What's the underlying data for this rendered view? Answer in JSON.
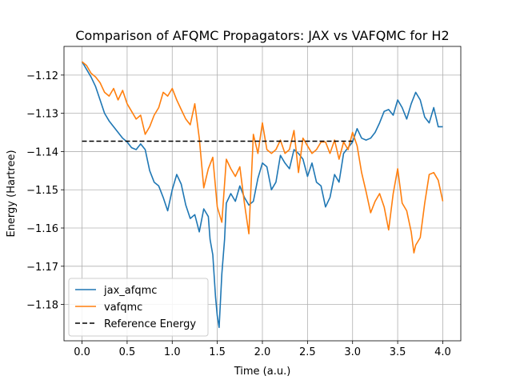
{
  "chart_data": {
    "type": "line",
    "title": "Comparison of AFQMC Propagators: JAX vs VAFQMC for H2",
    "xlabel": "Time (a.u.)",
    "ylabel": "Energy (Hartree)",
    "xlim": [
      -0.2,
      4.2
    ],
    "ylim": [
      -1.1895,
      -1.1125
    ],
    "xticks": [
      0.0,
      0.5,
      1.0,
      1.5,
      2.0,
      2.5,
      3.0,
      3.5,
      4.0
    ],
    "xtick_labels": [
      "0.0",
      "0.5",
      "1.0",
      "1.5",
      "2.0",
      "2.5",
      "3.0",
      "3.5",
      "4.0"
    ],
    "yticks": [
      -1.18,
      -1.17,
      -1.16,
      -1.15,
      -1.14,
      -1.13,
      -1.12
    ],
    "ytick_labels": [
      "−1.18",
      "−1.17",
      "−1.16",
      "−1.15",
      "−1.14",
      "−1.13",
      "−1.12"
    ],
    "grid": true,
    "legend_position": "lower-left",
    "series": [
      {
        "name": "jax_afqmc",
        "color": "#1f77b4",
        "style": "solid",
        "x": [
          0.0,
          0.05,
          0.1,
          0.15,
          0.2,
          0.25,
          0.3,
          0.35,
          0.4,
          0.45,
          0.5,
          0.55,
          0.6,
          0.65,
          0.7,
          0.75,
          0.8,
          0.85,
          0.9,
          0.95,
          1.0,
          1.05,
          1.1,
          1.15,
          1.2,
          1.25,
          1.3,
          1.35,
          1.4,
          1.42,
          1.45,
          1.48,
          1.5,
          1.52,
          1.55,
          1.58,
          1.6,
          1.65,
          1.7,
          1.75,
          1.8,
          1.85,
          1.9,
          1.95,
          2.0,
          2.05,
          2.1,
          2.15,
          2.2,
          2.25,
          2.3,
          2.35,
          2.4,
          2.45,
          2.5,
          2.55,
          2.6,
          2.65,
          2.7,
          2.75,
          2.8,
          2.85,
          2.9,
          2.95,
          3.0,
          3.05,
          3.1,
          3.15,
          3.2,
          3.25,
          3.3,
          3.35,
          3.4,
          3.45,
          3.5,
          3.55,
          3.6,
          3.65,
          3.7,
          3.75,
          3.8,
          3.85,
          3.9,
          3.95,
          4.0
        ],
        "y": [
          -1.1165,
          -1.1185,
          -1.1205,
          -1.123,
          -1.1265,
          -1.13,
          -1.132,
          -1.1335,
          -1.135,
          -1.1365,
          -1.1375,
          -1.139,
          -1.1395,
          -1.138,
          -1.1395,
          -1.145,
          -1.148,
          -1.149,
          -1.152,
          -1.1555,
          -1.15,
          -1.146,
          -1.1485,
          -1.154,
          -1.1575,
          -1.1565,
          -1.161,
          -1.155,
          -1.157,
          -1.163,
          -1.167,
          -1.178,
          -1.183,
          -1.186,
          -1.172,
          -1.163,
          -1.1535,
          -1.151,
          -1.153,
          -1.149,
          -1.152,
          -1.154,
          -1.153,
          -1.147,
          -1.143,
          -1.144,
          -1.15,
          -1.148,
          -1.141,
          -1.143,
          -1.1445,
          -1.1395,
          -1.1405,
          -1.142,
          -1.1465,
          -1.143,
          -1.148,
          -1.149,
          -1.1545,
          -1.152,
          -1.146,
          -1.148,
          -1.1405,
          -1.139,
          -1.1375,
          -1.134,
          -1.1365,
          -1.137,
          -1.1365,
          -1.135,
          -1.1325,
          -1.1295,
          -1.129,
          -1.1305,
          -1.1265,
          -1.1285,
          -1.1315,
          -1.1275,
          -1.1245,
          -1.1265,
          -1.131,
          -1.1325,
          -1.1285,
          -1.1335,
          -1.1335
        ]
      },
      {
        "name": "vafqmc",
        "color": "#ff7f0e",
        "style": "solid",
        "x": [
          0.0,
          0.05,
          0.1,
          0.15,
          0.2,
          0.25,
          0.3,
          0.35,
          0.4,
          0.45,
          0.5,
          0.55,
          0.6,
          0.65,
          0.7,
          0.75,
          0.8,
          0.85,
          0.9,
          0.95,
          1.0,
          1.05,
          1.1,
          1.15,
          1.2,
          1.25,
          1.3,
          1.35,
          1.4,
          1.45,
          1.5,
          1.55,
          1.6,
          1.65,
          1.7,
          1.75,
          1.8,
          1.85,
          1.9,
          1.95,
          2.0,
          2.05,
          2.1,
          2.15,
          2.2,
          2.25,
          2.3,
          2.35,
          2.4,
          2.45,
          2.5,
          2.55,
          2.6,
          2.65,
          2.7,
          2.75,
          2.8,
          2.85,
          2.9,
          2.95,
          3.0,
          3.05,
          3.1,
          3.15,
          3.2,
          3.25,
          3.3,
          3.35,
          3.4,
          3.45,
          3.5,
          3.55,
          3.6,
          3.65,
          3.68,
          3.7,
          3.75,
          3.8,
          3.85,
          3.9,
          3.95,
          4.0
        ],
        "y": [
          -1.1165,
          -1.1175,
          -1.1195,
          -1.1205,
          -1.122,
          -1.1245,
          -1.1255,
          -1.1235,
          -1.1265,
          -1.124,
          -1.1275,
          -1.1295,
          -1.1315,
          -1.1305,
          -1.1355,
          -1.1335,
          -1.1305,
          -1.1285,
          -1.1245,
          -1.1255,
          -1.1235,
          -1.1265,
          -1.129,
          -1.1315,
          -1.133,
          -1.1275,
          -1.1365,
          -1.1495,
          -1.1445,
          -1.1415,
          -1.1545,
          -1.1585,
          -1.142,
          -1.1445,
          -1.1465,
          -1.144,
          -1.1535,
          -1.1615,
          -1.1355,
          -1.1405,
          -1.1325,
          -1.1395,
          -1.1405,
          -1.1395,
          -1.137,
          -1.1405,
          -1.1395,
          -1.1345,
          -1.1455,
          -1.1365,
          -1.1385,
          -1.1405,
          -1.1395,
          -1.1375,
          -1.1375,
          -1.1405,
          -1.137,
          -1.142,
          -1.1375,
          -1.1395,
          -1.135,
          -1.1385,
          -1.1455,
          -1.1505,
          -1.156,
          -1.153,
          -1.151,
          -1.1545,
          -1.1605,
          -1.151,
          -1.1445,
          -1.1535,
          -1.1555,
          -1.161,
          -1.1665,
          -1.1645,
          -1.1625,
          -1.1535,
          -1.146,
          -1.1455,
          -1.1475,
          -1.153
        ]
      },
      {
        "name": "Reference Energy",
        "color": "#000000",
        "style": "dashed",
        "x": [
          0.0,
          3.0
        ],
        "y": [
          -1.1373,
          -1.1373
        ]
      }
    ]
  }
}
